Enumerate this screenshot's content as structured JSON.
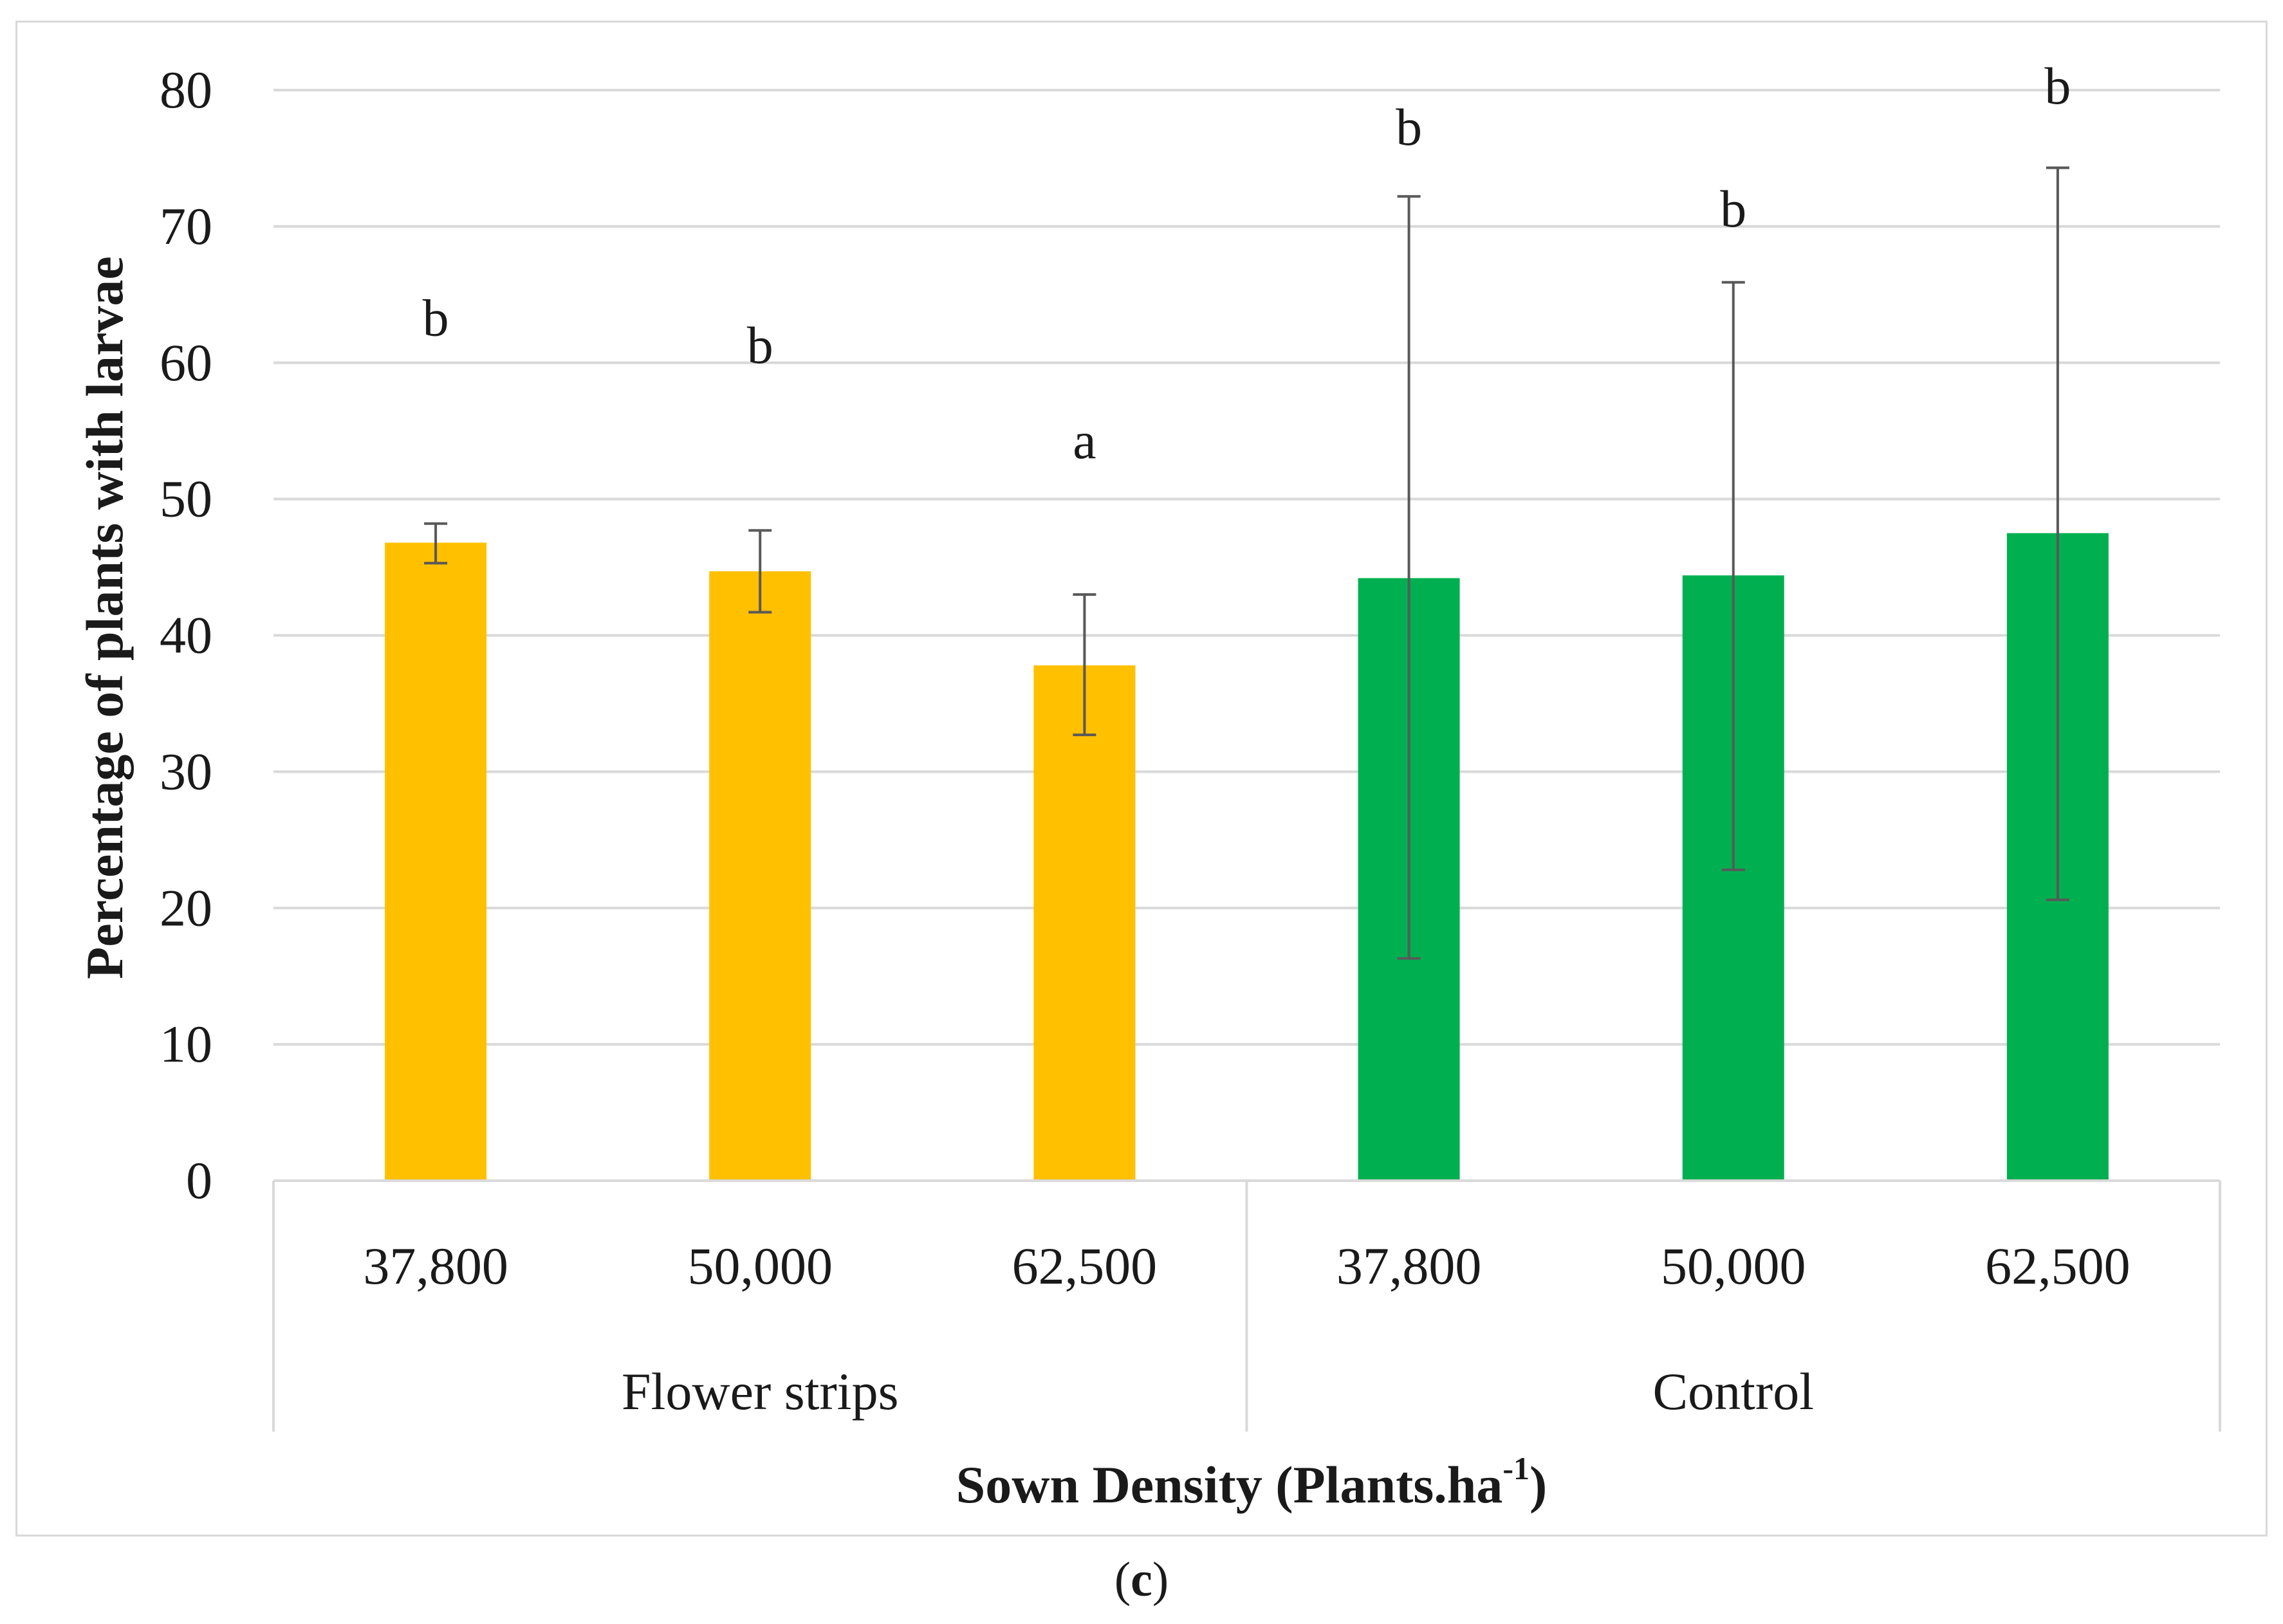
{
  "chart_data": {
    "type": "bar",
    "title": "",
    "ylabel": "Percentage of plants with larvae",
    "xlabel_main": "Sown Density (Plants.ha",
    "xlabel_sup": "-1",
    "xlabel_end": ")",
    "ylim": [
      0,
      80
    ],
    "yticks": [
      0,
      10,
      20,
      30,
      40,
      50,
      60,
      70,
      80
    ],
    "grid": true,
    "groups": [
      {
        "name": "Flower strips",
        "color": "#FFC000"
      },
      {
        "name": "Control",
        "color": "#00B050"
      }
    ],
    "bars": [
      {
        "category": "37,800",
        "group": 0,
        "value": 46.8,
        "err_low": 45.3,
        "err_high": 48.2,
        "sig": "b",
        "sig_y": 62
      },
      {
        "category": "50,000",
        "group": 0,
        "value": 44.7,
        "err_low": 41.7,
        "err_high": 47.7,
        "sig": "b",
        "sig_y": 60
      },
      {
        "category": "62,500",
        "group": 0,
        "value": 37.8,
        "err_low": 32.7,
        "err_high": 43.0,
        "sig": "a",
        "sig_y": 53
      },
      {
        "category": "37,800",
        "group": 1,
        "value": 44.2,
        "err_low": 16.3,
        "err_high": 72.2,
        "sig": "b",
        "sig_y": 76
      },
      {
        "category": "50,000",
        "group": 1,
        "value": 44.4,
        "err_low": 22.8,
        "err_high": 65.9,
        "sig": "b",
        "sig_y": 70
      },
      {
        "category": "62,500",
        "group": 1,
        "value": 47.5,
        "err_low": 20.6,
        "err_high": 74.3,
        "sig": "b",
        "sig_y": 79
      }
    ]
  },
  "caption": {
    "open": "(",
    "letter": "c",
    "close": ")"
  }
}
